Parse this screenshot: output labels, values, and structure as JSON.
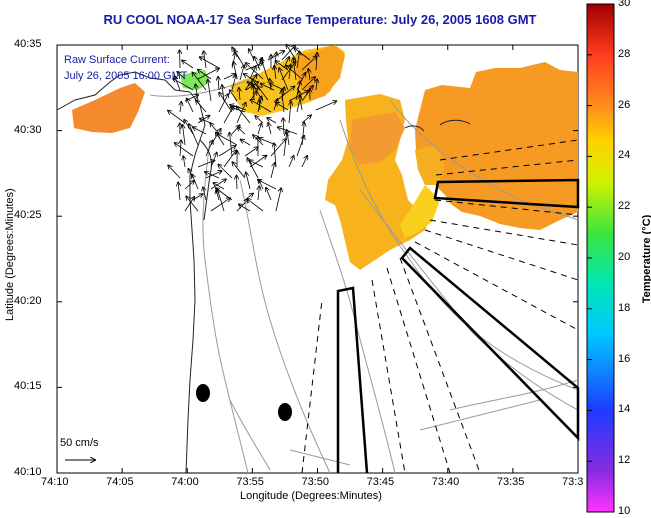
{
  "title": "RU COOL  NOAA-17  Sea Surface Temperature:  July 26, 2005 1608 GMT",
  "legend": {
    "line1": "Raw Surface Current:",
    "line2": "July 26, 2005 16:00 GMT"
  },
  "scale_label": "50 cm/s",
  "axes": {
    "xlabel": "Longitude (Degrees:Minutes)",
    "ylabel": "Latitude (Degrees:Minutes)",
    "x_ticks": [
      "74:10",
      "74:05",
      "74:00",
      "73:55",
      "73:50",
      "73:45",
      "73:40",
      "73:35",
      "73:3"
    ],
    "y_ticks": [
      "40:35",
      "40:30",
      "40:25",
      "40:20",
      "40:15",
      "40:10"
    ]
  },
  "colorbar": {
    "label": "Temperature (°C)",
    "ticks": [
      "30",
      "28",
      "26",
      "24",
      "22",
      "20",
      "18",
      "16",
      "14",
      "12",
      "10"
    ],
    "range": [
      10,
      30
    ]
  },
  "colors": {
    "title": "#1a1aa8",
    "warm": "#ff9a1a",
    "yellow": "#ffd21a",
    "green_patch": "#7ee85a",
    "land_line": "#222222",
    "bathymetry": "#999999"
  }
}
